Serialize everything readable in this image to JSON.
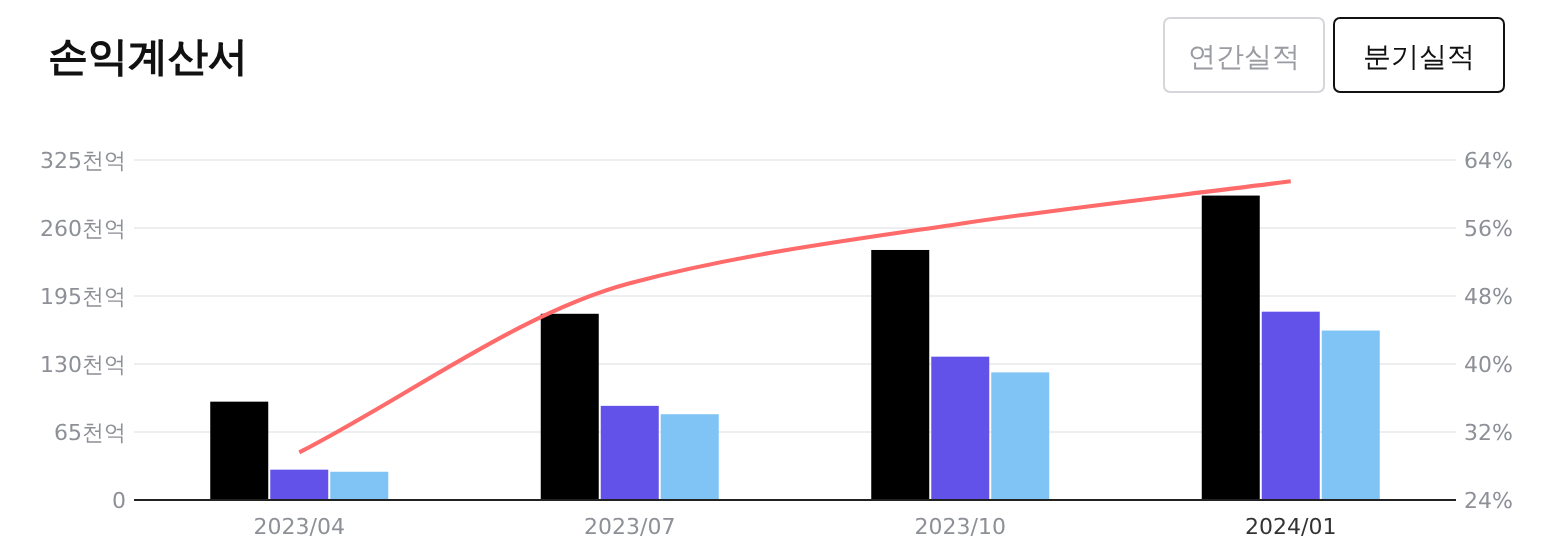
{
  "chart_data": {
    "type": "bar",
    "title": "손익계산서",
    "annotations": [
      "연간실적",
      "분기실적"
    ],
    "categories": [
      "2023/04",
      "2023/07",
      "2023/10",
      "2024/01"
    ],
    "series": [
      {
        "color": "#000000",
        "values": [
          94,
          178,
          239,
          291
        ]
      },
      {
        "color": "#6352ea",
        "values": [
          29,
          90,
          137,
          180
        ]
      },
      {
        "color": "#80c4f5",
        "values": [
          27,
          82,
          122,
          162
        ]
      },
      {
        "type": "line",
        "axis": "y2",
        "color": "#ff6b6b",
        "values": [
          29.6,
          49.5,
          56.5,
          61.5
        ]
      }
    ],
    "ylim": [
      0,
      325
    ],
    "yticks": [
      0,
      {
        "value": 65,
        "label": "65천억"
      },
      {
        "value": 130,
        "label": "130천억"
      },
      {
        "value": 195,
        "label": "195천억"
      },
      {
        "value": 260,
        "label": "260천억"
      },
      {
        "value": 325,
        "label": "325천억"
      }
    ],
    "y2lim": [
      24,
      64
    ],
    "y2ticks": [
      {
        "value": 24,
        "label": "24%"
      },
      {
        "value": 32,
        "label": "32%"
      },
      {
        "value": 40,
        "label": "40%"
      },
      {
        "value": 48,
        "label": "48%"
      },
      {
        "value": 56,
        "label": "56%"
      },
      {
        "value": 64,
        "label": "64%"
      }
    ],
    "grid": "y"
  }
}
